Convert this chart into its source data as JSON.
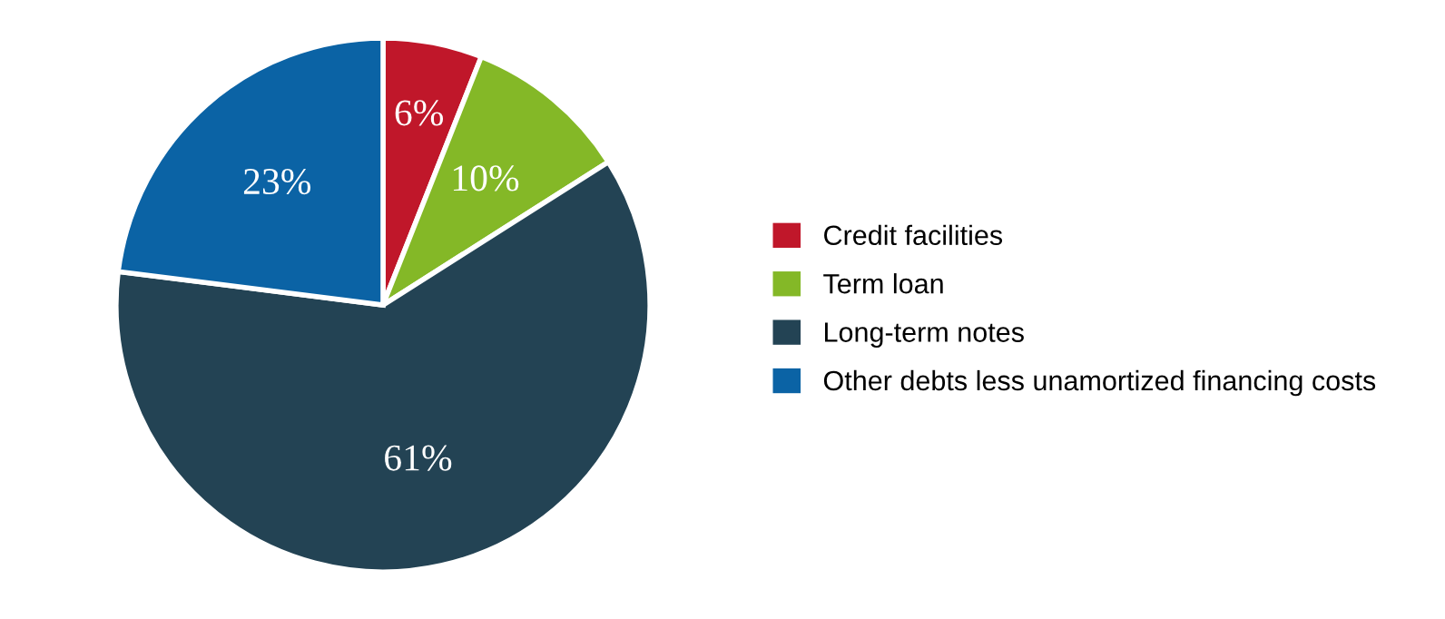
{
  "chart_data": {
    "type": "pie",
    "categories": [
      "Credit facilities",
      "Term loan",
      "Long-term notes",
      "Other debts less unamortized financing costs"
    ],
    "values": [
      6,
      10,
      61,
      23
    ],
    "colors": [
      "#c0172a",
      "#84b827",
      "#234354",
      "#0b63a5"
    ],
    "value_labels": [
      "6%",
      "10%",
      "61%",
      "23%"
    ],
    "legend": "right"
  }
}
